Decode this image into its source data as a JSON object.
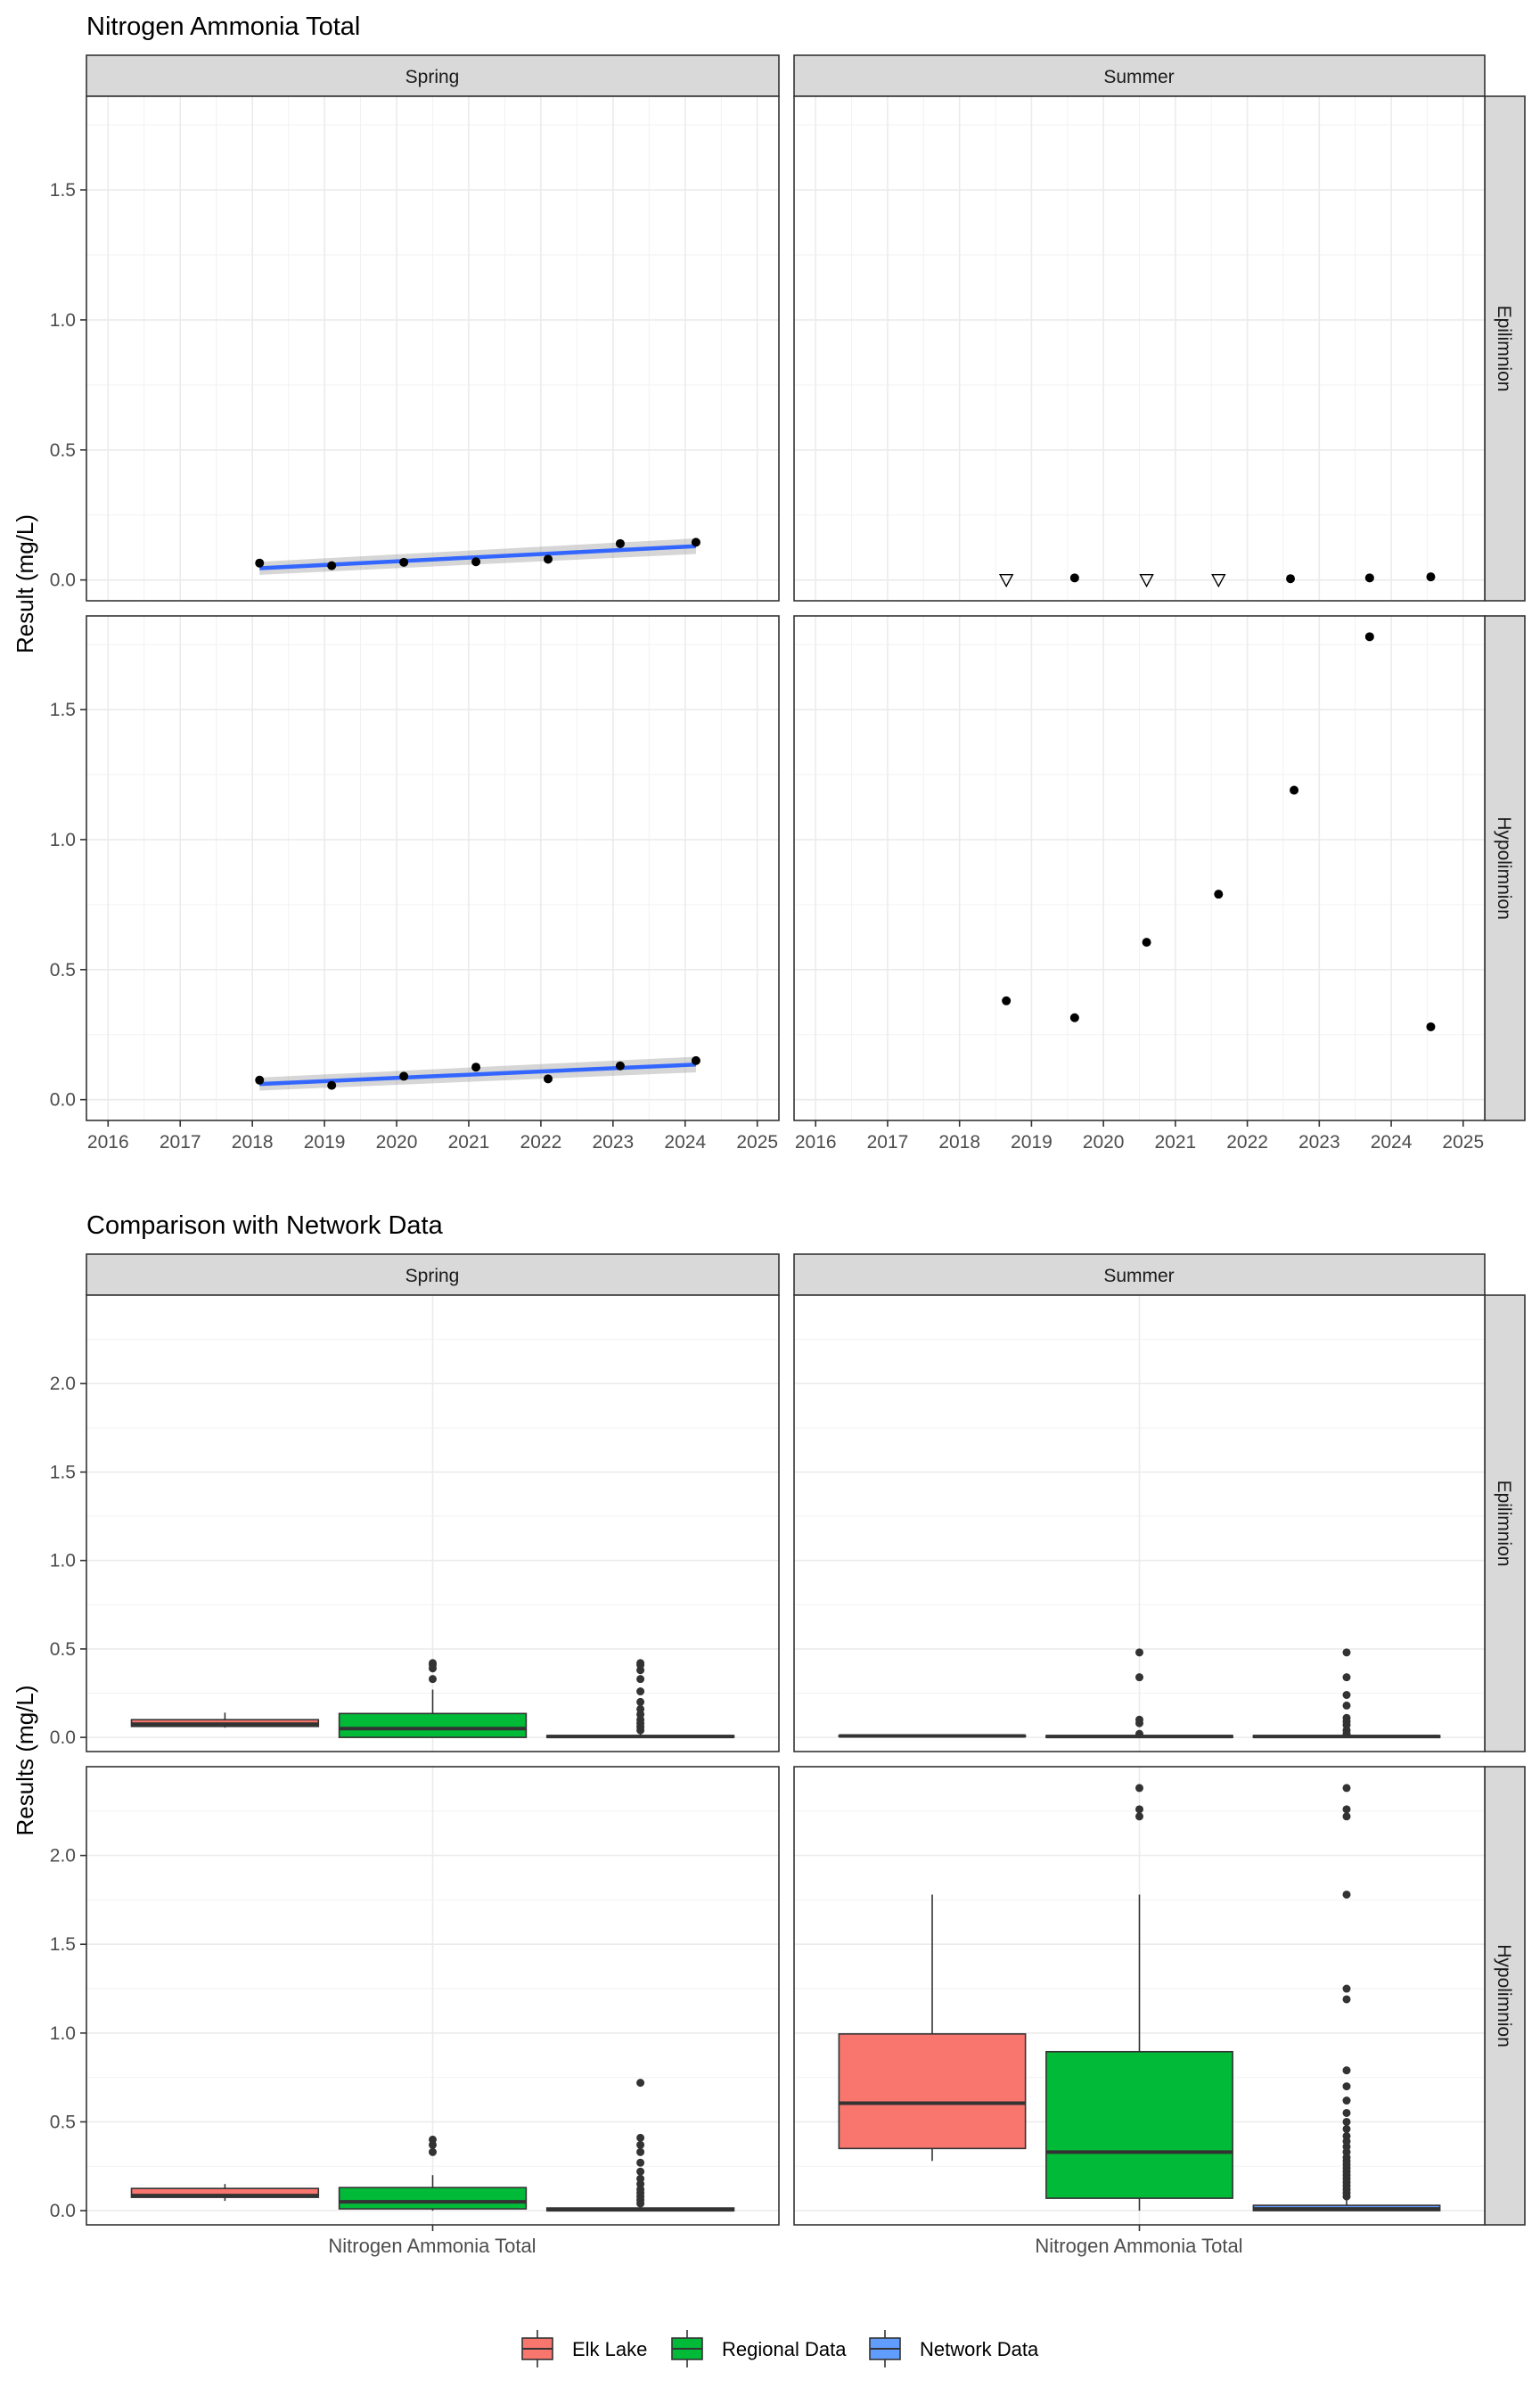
{
  "chart_data": [
    {
      "type": "scatter",
      "title": "Nitrogen Ammonia Total",
      "ylabel": "Result (mg/L)",
      "xlabel": "",
      "x_ticks": [
        "2016",
        "2017",
        "2018",
        "2019",
        "2020",
        "2021",
        "2022",
        "2023",
        "2024",
        "2025"
      ],
      "y_ticks": [
        "0.0",
        "0.5",
        "1.0",
        "1.5"
      ],
      "xlim": [
        2015.7,
        2025.3
      ],
      "ylim": [
        -0.08,
        1.86
      ],
      "grid": true,
      "column_strips": [
        "Spring",
        "Summer"
      ],
      "row_strips": [
        "Epilimnion",
        "Hypolimnion"
      ],
      "panels": [
        {
          "season": "Spring",
          "layer": "Epilimnion",
          "points": [
            {
              "x": 2018.1,
              "y": 0.065
            },
            {
              "x": 2019.1,
              "y": 0.055
            },
            {
              "x": 2020.1,
              "y": 0.068
            },
            {
              "x": 2021.1,
              "y": 0.07
            },
            {
              "x": 2022.1,
              "y": 0.08
            },
            {
              "x": 2023.1,
              "y": 0.14
            },
            {
              "x": 2024.15,
              "y": 0.145
            }
          ],
          "trend": {
            "x": [
              2018.1,
              2024.15
            ],
            "y": [
              0.045,
              0.13
            ],
            "band": [
              [
                0.02,
                0.07
              ],
              [
                0.1,
                0.16
              ]
            ]
          }
        },
        {
          "season": "Summer",
          "layer": "Epilimnion",
          "points": [
            {
              "x": 2019.6,
              "y": 0.008
            },
            {
              "x": 2022.6,
              "y": 0.005
            },
            {
              "x": 2023.7,
              "y": 0.008
            },
            {
              "x": 2024.55,
              "y": 0.012
            }
          ],
          "nondetects": [
            {
              "x": 2018.65,
              "y": 0.0
            },
            {
              "x": 2020.6,
              "y": 0.0
            },
            {
              "x": 2021.6,
              "y": 0.0
            }
          ]
        },
        {
          "season": "Spring",
          "layer": "Hypolimnion",
          "points": [
            {
              "x": 2018.1,
              "y": 0.075
            },
            {
              "x": 2019.1,
              "y": 0.055
            },
            {
              "x": 2020.1,
              "y": 0.09
            },
            {
              "x": 2021.1,
              "y": 0.125
            },
            {
              "x": 2022.1,
              "y": 0.08
            },
            {
              "x": 2023.1,
              "y": 0.13
            },
            {
              "x": 2024.15,
              "y": 0.15
            }
          ],
          "trend": {
            "x": [
              2018.1,
              2024.15
            ],
            "y": [
              0.06,
              0.135
            ],
            "band": [
              [
                0.035,
                0.085
              ],
              [
                0.105,
                0.165
              ]
            ]
          }
        },
        {
          "season": "Summer",
          "layer": "Hypolimnion",
          "points": [
            {
              "x": 2018.65,
              "y": 0.38
            },
            {
              "x": 2019.6,
              "y": 0.315
            },
            {
              "x": 2020.6,
              "y": 0.605
            },
            {
              "x": 2021.6,
              "y": 0.79
            },
            {
              "x": 2022.65,
              "y": 1.19
            },
            {
              "x": 2023.7,
              "y": 1.78
            },
            {
              "x": 2024.55,
              "y": 0.28
            }
          ]
        }
      ]
    },
    {
      "type": "box",
      "title": "Comparison with Network Data",
      "ylabel": "Results (mg/L)",
      "category": "Nitrogen Ammonia Total",
      "y_ticks": [
        "0.0",
        "0.5",
        "1.0",
        "1.5",
        "2.0"
      ],
      "ylim": [
        -0.08,
        2.5
      ],
      "column_strips": [
        "Spring",
        "Summer"
      ],
      "row_strips": [
        "Epilimnion",
        "Hypolimnion"
      ],
      "legend": {
        "position": "bottom",
        "entries": [
          {
            "name": "Elk Lake",
            "color": "#F8766D"
          },
          {
            "name": "Regional Data",
            "color": "#00BA38"
          },
          {
            "name": "Network Data",
            "color": "#619CFF"
          }
        ]
      },
      "panels": [
        {
          "season": "Spring",
          "layer": "Epilimnion",
          "boxes": [
            {
              "group": "Elk Lake",
              "min": 0.055,
              "q1": 0.062,
              "median": 0.075,
              "q3": 0.1,
              "max": 0.14,
              "outliers": []
            },
            {
              "group": "Regional Data",
              "min": 0.0,
              "q1": 0.0,
              "median": 0.05,
              "q3": 0.135,
              "max": 0.27,
              "outliers": [
                0.33,
                0.39,
                0.41,
                0.42
              ]
            },
            {
              "group": "Network Data",
              "min": 0.0,
              "q1": 0.0,
              "median": 0.005,
              "q3": 0.01,
              "max": 0.03,
              "outliers": [
                0.04,
                0.06,
                0.08,
                0.1,
                0.13,
                0.16,
                0.2,
                0.26,
                0.33,
                0.38,
                0.41,
                0.42
              ]
            }
          ]
        },
        {
          "season": "Summer",
          "layer": "Epilimnion",
          "boxes": [
            {
              "group": "Elk Lake",
              "min": 0.003,
              "q1": 0.005,
              "median": 0.008,
              "q3": 0.01,
              "max": 0.012,
              "outliers": []
            },
            {
              "group": "Regional Data",
              "min": 0.0,
              "q1": 0.0,
              "median": 0.005,
              "q3": 0.01,
              "max": 0.015,
              "outliers": [
                0.02,
                0.08,
                0.1,
                0.34,
                0.48
              ]
            },
            {
              "group": "Network Data",
              "min": 0.0,
              "q1": 0.0,
              "median": 0.005,
              "q3": 0.01,
              "max": 0.015,
              "outliers": [
                0.02,
                0.04,
                0.07,
                0.09,
                0.11,
                0.18,
                0.24,
                0.34,
                0.48
              ]
            }
          ]
        },
        {
          "season": "Spring",
          "layer": "Hypolimnion",
          "boxes": [
            {
              "group": "Elk Lake",
              "min": 0.055,
              "q1": 0.075,
              "median": 0.085,
              "q3": 0.125,
              "max": 0.15,
              "outliers": []
            },
            {
              "group": "Regional Data",
              "min": 0.0,
              "q1": 0.01,
              "median": 0.05,
              "q3": 0.13,
              "max": 0.2,
              "outliers": [
                0.33,
                0.37,
                0.4
              ]
            },
            {
              "group": "Network Data",
              "min": 0.0,
              "q1": 0.0,
              "median": 0.005,
              "q3": 0.015,
              "max": 0.035,
              "outliers": [
                0.04,
                0.06,
                0.08,
                0.1,
                0.12,
                0.15,
                0.18,
                0.22,
                0.27,
                0.33,
                0.37,
                0.41,
                0.72
              ]
            }
          ]
        },
        {
          "season": "Summer",
          "layer": "Hypolimnion",
          "boxes": [
            {
              "group": "Elk Lake",
              "min": 0.28,
              "q1": 0.35,
              "median": 0.605,
              "q3": 0.995,
              "max": 1.78,
              "outliers": []
            },
            {
              "group": "Regional Data",
              "min": 0.0,
              "q1": 0.07,
              "median": 0.33,
              "q3": 0.895,
              "max": 1.78,
              "outliers": [
                2.22,
                2.26,
                2.38
              ]
            },
            {
              "group": "Network Data",
              "min": 0.0,
              "q1": 0.0,
              "median": 0.01,
              "q3": 0.03,
              "max": 0.07,
              "outliers": [
                0.08,
                0.1,
                0.12,
                0.14,
                0.16,
                0.18,
                0.2,
                0.22,
                0.24,
                0.26,
                0.28,
                0.3,
                0.33,
                0.36,
                0.39,
                0.42,
                0.46,
                0.5,
                0.55,
                0.62,
                0.7,
                0.79,
                1.19,
                1.25,
                1.78,
                2.22,
                2.26,
                2.38
              ]
            }
          ]
        }
      ]
    }
  ]
}
